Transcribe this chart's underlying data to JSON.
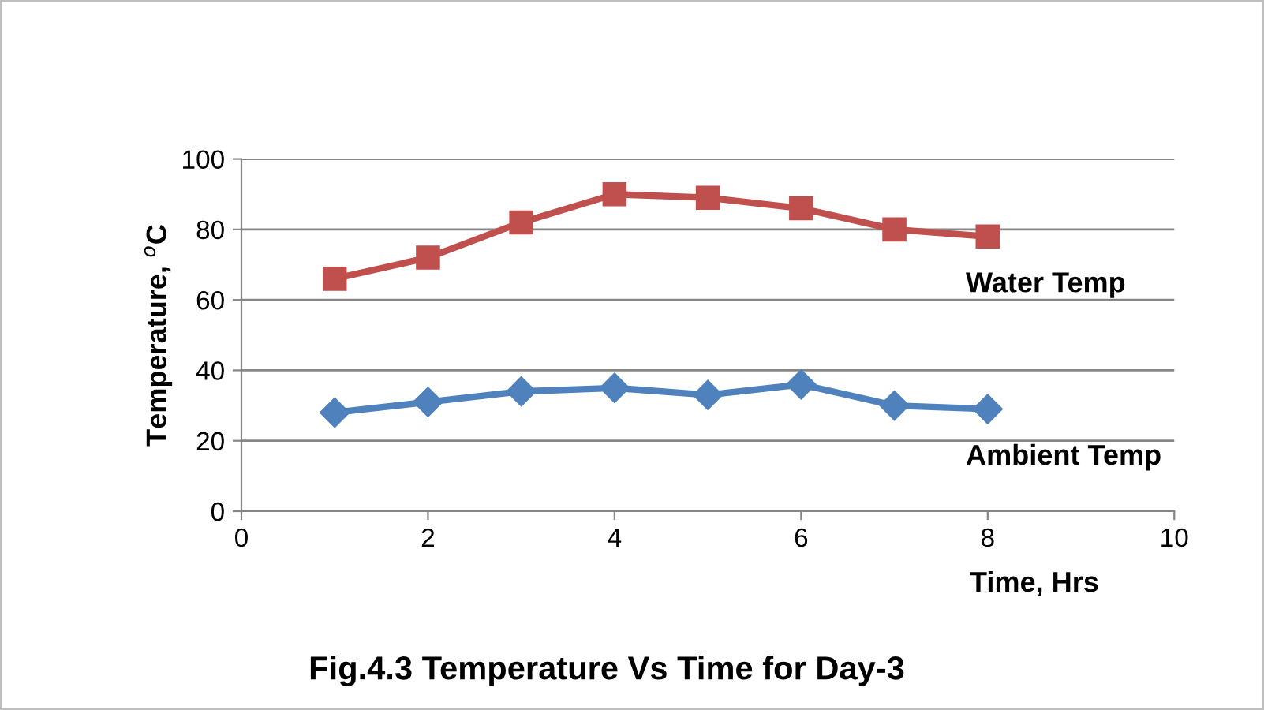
{
  "chart_data": {
    "type": "line",
    "title": "Fig.4.3 Temperature Vs Time for Day-3",
    "xlabel": "Time, Hrs",
    "ylabel": "Temperature, $^{o}$C",
    "x": [
      1,
      2,
      3,
      4,
      5,
      6,
      7,
      8
    ],
    "series": [
      {
        "name": "Water Temp",
        "color": "#c0504d",
        "marker": "square",
        "values": [
          66,
          72,
          82,
          90,
          89,
          86,
          80,
          78
        ]
      },
      {
        "name": "Ambient Temp",
        "color": "#4f81bd",
        "marker": "diamond",
        "values": [
          28,
          31,
          34,
          35,
          33,
          36,
          30,
          29
        ]
      }
    ],
    "xlim": [
      0,
      10
    ],
    "xticks": [
      0,
      2,
      4,
      6,
      8,
      10
    ],
    "ylim": [
      0,
      100
    ],
    "yticks": [
      0,
      20,
      40,
      60,
      80,
      100
    ],
    "grid": "y",
    "legend": false,
    "line_style": "solid"
  }
}
